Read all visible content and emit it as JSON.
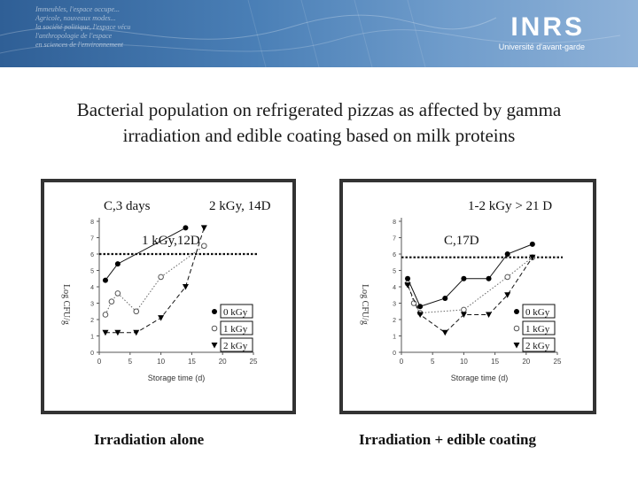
{
  "banner": {
    "brand": "INRS",
    "tagline": "Université d'avant-garde",
    "faint_text": "Immeubles, l'espace occupe...\nAgricole, nouveaux modes...\nla société politique, l'espace vécu\nl'anthropologie de l'espace\nen sciences de l'environnement"
  },
  "title": "Bacterial population on refrigerated pizzas as affected by gamma irradiation and edible coating based on milk proteins",
  "left_panel": {
    "caption": "Irradiation alone",
    "annotations": [
      "C,3 days",
      "2 kGy, 14D",
      "1 kGy,12D"
    ]
  },
  "right_panel": {
    "caption": "Irradiation + edible coating",
    "annotations": [
      "1-2 kGy > 21 D",
      "C,17D"
    ]
  },
  "chart_data": [
    {
      "type": "line",
      "xlabel": "Storage time (d)",
      "ylabel": "Log CFU/g",
      "xlim": [
        0,
        25
      ],
      "ylim": [
        0,
        8
      ],
      "xticks": [
        0,
        5,
        10,
        15,
        20,
        25
      ],
      "yticks": [
        0,
        1,
        2,
        3,
        4,
        5,
        6,
        7,
        8
      ],
      "threshold": 6,
      "legend_position": "right",
      "series": [
        {
          "name": "0 kGy",
          "marker": "circle-filled",
          "line": "solid",
          "x": [
            1,
            3,
            14
          ],
          "y": [
            4.4,
            5.4,
            7.6
          ]
        },
        {
          "name": "1 kGy",
          "marker": "circle-open",
          "line": "dotted",
          "x": [
            1,
            2,
            3,
            6,
            10,
            17
          ],
          "y": [
            2.3,
            3.1,
            3.6,
            2.5,
            4.6,
            6.5
          ]
        },
        {
          "name": "2 kGy",
          "marker": "triangle-down",
          "line": "dashed",
          "x": [
            1,
            3,
            6,
            10,
            14,
            17
          ],
          "y": [
            1.2,
            1.2,
            1.2,
            2.1,
            4.0,
            7.6
          ]
        }
      ]
    },
    {
      "type": "line",
      "xlabel": "Storage time (d)",
      "ylabel": "Log CFU/g",
      "xlim": [
        0,
        25
      ],
      "ylim": [
        0,
        8
      ],
      "xticks": [
        0,
        5,
        10,
        15,
        20,
        25
      ],
      "yticks": [
        0,
        1,
        2,
        3,
        4,
        5,
        6,
        7,
        8
      ],
      "threshold": 5.8,
      "legend_position": "right",
      "series": [
        {
          "name": "0 kGy",
          "marker": "circle-filled",
          "line": "solid",
          "x": [
            1,
            3,
            7,
            10,
            14,
            17,
            21
          ],
          "y": [
            4.5,
            2.8,
            3.3,
            4.5,
            4.5,
            6.0,
            6.6
          ]
        },
        {
          "name": "1 kGy",
          "marker": "circle-open",
          "line": "dotted",
          "x": [
            1,
            2,
            3,
            10,
            17,
            21
          ],
          "y": [
            4.2,
            3.0,
            2.4,
            2.6,
            4.6,
            5.8
          ]
        },
        {
          "name": "2 kGy",
          "marker": "triangle-down",
          "line": "dashed",
          "x": [
            1,
            3,
            7,
            10,
            14,
            17,
            21
          ],
          "y": [
            4.1,
            2.3,
            1.2,
            2.3,
            2.3,
            3.5,
            5.8
          ]
        }
      ]
    }
  ]
}
